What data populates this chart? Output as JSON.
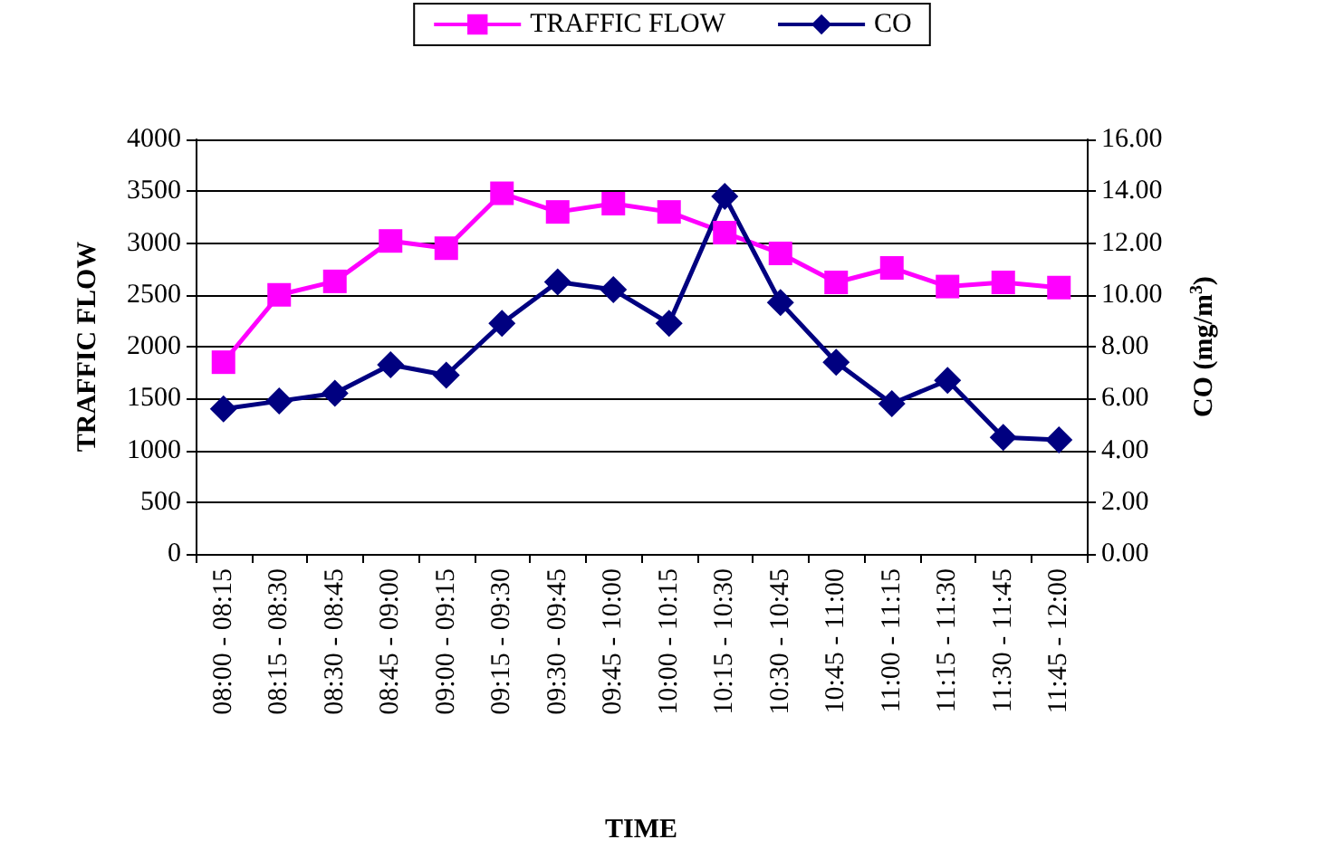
{
  "chart_data": {
    "type": "line",
    "xlabel": "TIME",
    "ylabel": "TRAFFIC FLOW",
    "y2label": "CO (mg/m$^{3}$)",
    "categories": [
      "08:00 - 08:15",
      "08:15 - 08:30",
      "08:30 - 08:45",
      "08:45 - 09:00",
      "09:00 - 09:15",
      "09:15 - 09:30",
      "09:30 - 09:45",
      "09:45 - 10:00",
      "10:00 - 10:15",
      "10:15 - 10:30",
      "10:30 - 10:45",
      "10:45 - 11:00",
      "11:00 - 11:15",
      "11:15 - 11:30",
      "11:30 - 11:45",
      "11:45 - 12:00"
    ],
    "series": [
      {
        "name": "TRAFFIC FLOW",
        "color": "#ff00ff",
        "marker": "square",
        "values": [
          1850,
          2500,
          2630,
          3020,
          2950,
          3480,
          3300,
          3380,
          3300,
          3100,
          2900,
          2620,
          2760,
          2580,
          2620,
          2570
        ]
      },
      {
        "name": "CO",
        "color": "#000080",
        "marker": "diamond",
        "axis": "y2",
        "values": [
          5.6,
          5.9,
          6.2,
          7.3,
          6.9,
          8.9,
          10.5,
          10.2,
          8.9,
          13.8,
          9.7,
          7.4,
          5.8,
          6.7,
          4.5,
          4.4
        ]
      }
    ],
    "ylim": [
      0,
      4000
    ],
    "yticks": [
      0,
      500,
      1000,
      1500,
      2000,
      2500,
      3000,
      3500,
      4000
    ],
    "y2lim": [
      0,
      16
    ],
    "y2ticks": [
      {
        "value": 0,
        "label": "0.00"
      },
      {
        "value": 2,
        "label": "2.00"
      },
      {
        "value": 4,
        "label": "4.00"
      },
      {
        "value": 6,
        "label": "6.00"
      },
      {
        "value": 8,
        "label": "8.00"
      },
      {
        "value": 10,
        "label": "10.00"
      },
      {
        "value": 12,
        "label": "12.00"
      },
      {
        "value": 14,
        "label": "14.00"
      },
      {
        "value": 16,
        "label": "16.00"
      }
    ],
    "grid": "y",
    "legend": "top",
    "line_style": "solid"
  }
}
